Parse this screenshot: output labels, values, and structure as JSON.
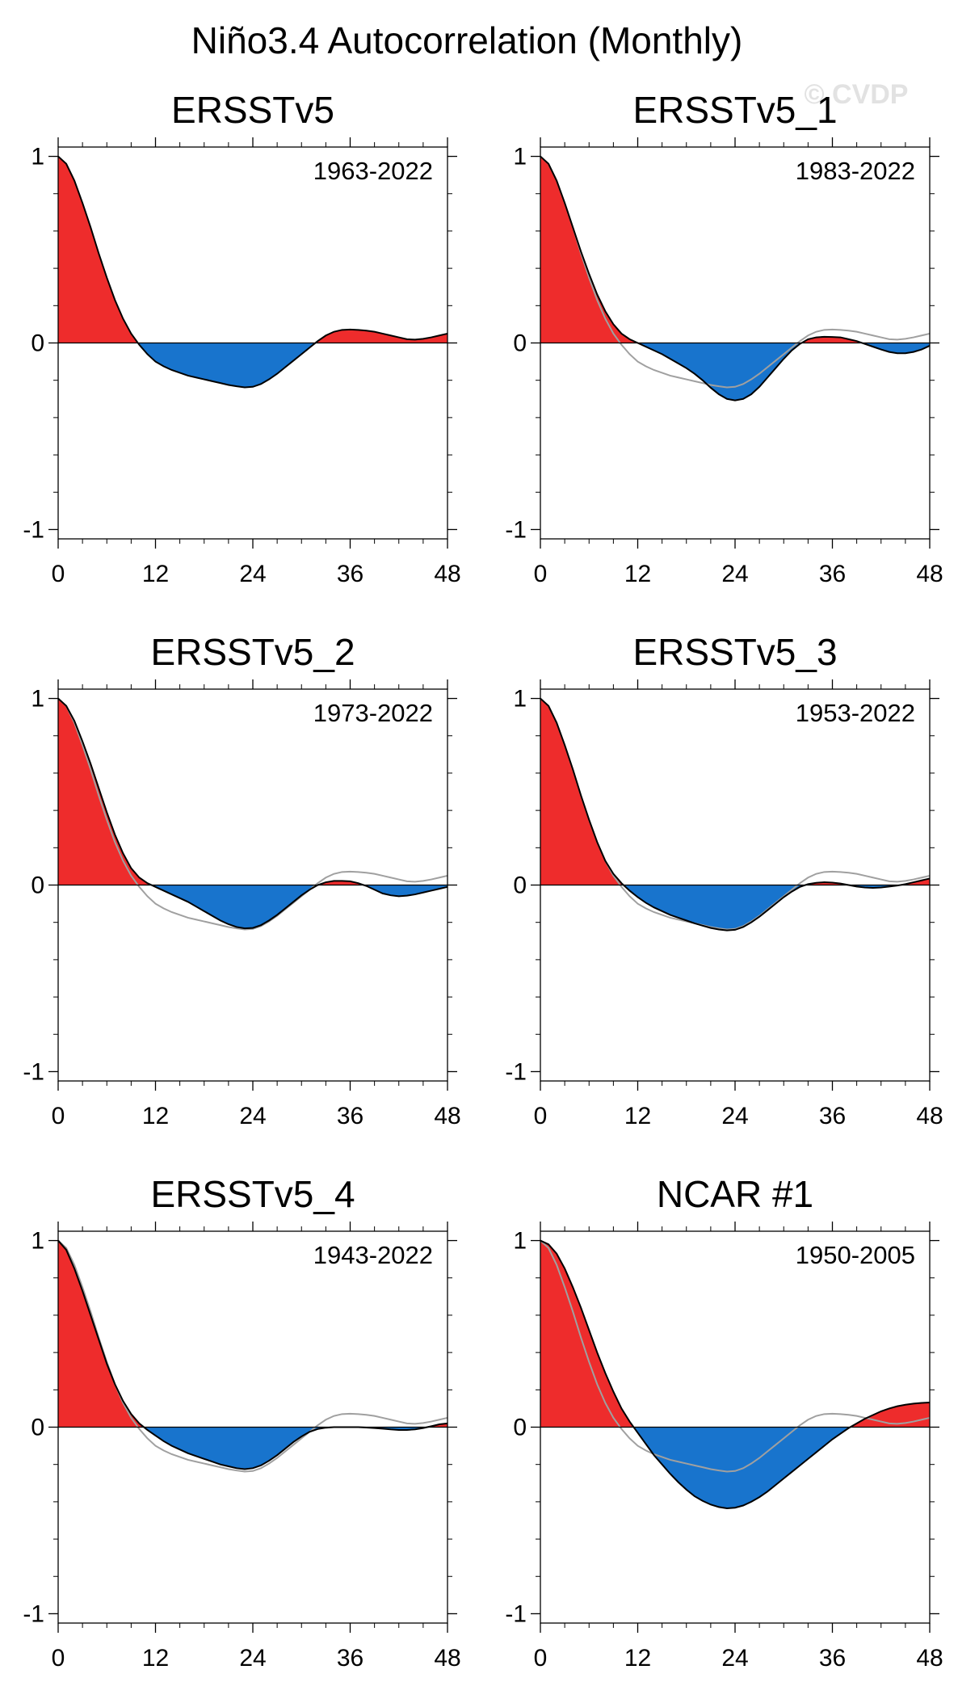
{
  "figure": {
    "title": "Niño3.4 Autocorrelation (Monthly)",
    "watermark": "© CVDP"
  },
  "colors": {
    "positive_fill": "#ee2c2c",
    "negative_fill": "#1874cd",
    "line": "#000000",
    "reference_line": "#a0a0a0",
    "axis": "#000000"
  },
  "chart_data": [
    {
      "type": "area",
      "title": "ERSSTv5",
      "period": "1963-2022",
      "xlabel": "",
      "ylabel": "",
      "xlim": [
        0,
        48
      ],
      "ylim": [
        -1.05,
        1.05
      ],
      "xticks": [
        0,
        12,
        24,
        36,
        48
      ],
      "xtick_labels": [
        "0",
        "12",
        "24",
        "36",
        "48"
      ],
      "yticks": [
        -1,
        0,
        1
      ],
      "ytick_labels": [
        "-1",
        "0",
        "1"
      ],
      "x": [
        0,
        1,
        2,
        3,
        4,
        5,
        6,
        7,
        8,
        9,
        10,
        11,
        12,
        13,
        14,
        15,
        16,
        17,
        18,
        19,
        20,
        21,
        22,
        23,
        24,
        25,
        26,
        27,
        28,
        29,
        30,
        31,
        32,
        33,
        34,
        35,
        36,
        37,
        38,
        39,
        40,
        41,
        42,
        43,
        44,
        45,
        46,
        47,
        48
      ],
      "series": [
        {
          "name": "ERSSTv5",
          "values": [
            1.0,
            0.96,
            0.87,
            0.75,
            0.62,
            0.48,
            0.35,
            0.23,
            0.13,
            0.05,
            -0.01,
            -0.06,
            -0.1,
            -0.125,
            -0.145,
            -0.16,
            -0.175,
            -0.185,
            -0.195,
            -0.205,
            -0.215,
            -0.225,
            -0.232,
            -0.238,
            -0.235,
            -0.22,
            -0.195,
            -0.165,
            -0.13,
            -0.095,
            -0.06,
            -0.025,
            0.01,
            0.04,
            0.06,
            0.07,
            0.072,
            0.07,
            0.066,
            0.06,
            0.05,
            0.04,
            0.03,
            0.02,
            0.018,
            0.022,
            0.03,
            0.04,
            0.05
          ]
        }
      ]
    },
    {
      "type": "area",
      "title": "ERSSTv5_1",
      "period": "1983-2022",
      "xlabel": "",
      "ylabel": "",
      "xlim": [
        0,
        48
      ],
      "ylim": [
        -1.05,
        1.05
      ],
      "xticks": [
        0,
        12,
        24,
        36,
        48
      ],
      "xtick_labels": [
        "0",
        "12",
        "24",
        "36",
        "48"
      ],
      "yticks": [
        -1,
        0,
        1
      ],
      "ytick_labels": [
        "-1",
        "0",
        "1"
      ],
      "x": [
        0,
        1,
        2,
        3,
        4,
        5,
        6,
        7,
        8,
        9,
        10,
        11,
        12,
        13,
        14,
        15,
        16,
        17,
        18,
        19,
        20,
        21,
        22,
        23,
        24,
        25,
        26,
        27,
        28,
        29,
        30,
        31,
        32,
        33,
        34,
        35,
        36,
        37,
        38,
        39,
        40,
        41,
        42,
        43,
        44,
        45,
        46,
        47,
        48
      ],
      "series": [
        {
          "name": "ERSSTv5_1",
          "values": [
            1.0,
            0.96,
            0.87,
            0.75,
            0.62,
            0.49,
            0.37,
            0.26,
            0.17,
            0.1,
            0.05,
            0.02,
            0.0,
            -0.02,
            -0.04,
            -0.06,
            -0.085,
            -0.11,
            -0.135,
            -0.165,
            -0.2,
            -0.24,
            -0.275,
            -0.3,
            -0.308,
            -0.3,
            -0.275,
            -0.235,
            -0.185,
            -0.135,
            -0.085,
            -0.04,
            -0.005,
            0.02,
            0.03,
            0.033,
            0.032,
            0.03,
            0.02,
            0.01,
            -0.005,
            -0.02,
            -0.035,
            -0.048,
            -0.055,
            -0.055,
            -0.048,
            -0.035,
            -0.015
          ]
        },
        {
          "name": "ERSSTv5 (reference)",
          "role": "reference",
          "values": [
            1.0,
            0.96,
            0.87,
            0.75,
            0.62,
            0.48,
            0.35,
            0.23,
            0.13,
            0.05,
            -0.01,
            -0.06,
            -0.1,
            -0.125,
            -0.145,
            -0.16,
            -0.175,
            -0.185,
            -0.195,
            -0.205,
            -0.215,
            -0.225,
            -0.232,
            -0.238,
            -0.235,
            -0.22,
            -0.195,
            -0.165,
            -0.13,
            -0.095,
            -0.06,
            -0.025,
            0.01,
            0.04,
            0.06,
            0.07,
            0.072,
            0.07,
            0.066,
            0.06,
            0.05,
            0.04,
            0.03,
            0.02,
            0.018,
            0.022,
            0.03,
            0.04,
            0.05
          ]
        }
      ]
    },
    {
      "type": "area",
      "title": "ERSSTv5_2",
      "period": "1973-2022",
      "xlabel": "",
      "ylabel": "",
      "xlim": [
        0,
        48
      ],
      "ylim": [
        -1.05,
        1.05
      ],
      "xticks": [
        0,
        12,
        24,
        36,
        48
      ],
      "xtick_labels": [
        "0",
        "12",
        "24",
        "36",
        "48"
      ],
      "yticks": [
        -1,
        0,
        1
      ],
      "ytick_labels": [
        "-1",
        "0",
        "1"
      ],
      "x": [
        0,
        1,
        2,
        3,
        4,
        5,
        6,
        7,
        8,
        9,
        10,
        11,
        12,
        13,
        14,
        15,
        16,
        17,
        18,
        19,
        20,
        21,
        22,
        23,
        24,
        25,
        26,
        27,
        28,
        29,
        30,
        31,
        32,
        33,
        34,
        35,
        36,
        37,
        38,
        39,
        40,
        41,
        42,
        43,
        44,
        45,
        46,
        47,
        48
      ],
      "series": [
        {
          "name": "ERSSTv5_2",
          "values": [
            1.0,
            0.96,
            0.88,
            0.77,
            0.65,
            0.52,
            0.39,
            0.27,
            0.17,
            0.09,
            0.04,
            0.01,
            -0.01,
            -0.03,
            -0.05,
            -0.07,
            -0.09,
            -0.115,
            -0.14,
            -0.165,
            -0.19,
            -0.21,
            -0.225,
            -0.232,
            -0.23,
            -0.215,
            -0.19,
            -0.16,
            -0.125,
            -0.09,
            -0.055,
            -0.025,
            0.0,
            0.015,
            0.022,
            0.022,
            0.02,
            0.01,
            -0.005,
            -0.025,
            -0.045,
            -0.055,
            -0.06,
            -0.057,
            -0.05,
            -0.04,
            -0.03,
            -0.02,
            -0.01
          ]
        },
        {
          "name": "ERSSTv5 (reference)",
          "role": "reference",
          "values": [
            1.0,
            0.96,
            0.87,
            0.75,
            0.62,
            0.48,
            0.35,
            0.23,
            0.13,
            0.05,
            -0.01,
            -0.06,
            -0.1,
            -0.125,
            -0.145,
            -0.16,
            -0.175,
            -0.185,
            -0.195,
            -0.205,
            -0.215,
            -0.225,
            -0.232,
            -0.238,
            -0.235,
            -0.22,
            -0.195,
            -0.165,
            -0.13,
            -0.095,
            -0.06,
            -0.025,
            0.01,
            0.04,
            0.06,
            0.07,
            0.072,
            0.07,
            0.066,
            0.06,
            0.05,
            0.04,
            0.03,
            0.02,
            0.018,
            0.022,
            0.03,
            0.04,
            0.05
          ]
        }
      ]
    },
    {
      "type": "area",
      "title": "ERSSTv5_3",
      "period": "1953-2022",
      "xlabel": "",
      "ylabel": "",
      "xlim": [
        0,
        48
      ],
      "ylim": [
        -1.05,
        1.05
      ],
      "xticks": [
        0,
        12,
        24,
        36,
        48
      ],
      "xtick_labels": [
        "0",
        "12",
        "24",
        "36",
        "48"
      ],
      "yticks": [
        -1,
        0,
        1
      ],
      "ytick_labels": [
        "-1",
        "0",
        "1"
      ],
      "x": [
        0,
        1,
        2,
        3,
        4,
        5,
        6,
        7,
        8,
        9,
        10,
        11,
        12,
        13,
        14,
        15,
        16,
        17,
        18,
        19,
        20,
        21,
        22,
        23,
        24,
        25,
        26,
        27,
        28,
        29,
        30,
        31,
        32,
        33,
        34,
        35,
        36,
        37,
        38,
        39,
        40,
        41,
        42,
        43,
        44,
        45,
        46,
        47,
        48
      ],
      "series": [
        {
          "name": "ERSSTv5_3",
          "values": [
            1.0,
            0.96,
            0.87,
            0.75,
            0.62,
            0.48,
            0.35,
            0.23,
            0.13,
            0.06,
            0.01,
            -0.03,
            -0.065,
            -0.095,
            -0.12,
            -0.14,
            -0.16,
            -0.175,
            -0.19,
            -0.205,
            -0.218,
            -0.23,
            -0.238,
            -0.243,
            -0.24,
            -0.225,
            -0.2,
            -0.17,
            -0.135,
            -0.1,
            -0.065,
            -0.035,
            -0.01,
            0.005,
            0.012,
            0.015,
            0.013,
            0.008,
            0.0,
            -0.008,
            -0.013,
            -0.015,
            -0.013,
            -0.008,
            -0.003,
            0.005,
            0.015,
            0.025,
            0.035
          ]
        },
        {
          "name": "ERSSTv5 (reference)",
          "role": "reference",
          "values": [
            1.0,
            0.96,
            0.87,
            0.75,
            0.62,
            0.48,
            0.35,
            0.23,
            0.13,
            0.05,
            -0.01,
            -0.06,
            -0.1,
            -0.125,
            -0.145,
            -0.16,
            -0.175,
            -0.185,
            -0.195,
            -0.205,
            -0.215,
            -0.225,
            -0.232,
            -0.238,
            -0.235,
            -0.22,
            -0.195,
            -0.165,
            -0.13,
            -0.095,
            -0.06,
            -0.025,
            0.01,
            0.04,
            0.06,
            0.07,
            0.072,
            0.07,
            0.066,
            0.06,
            0.05,
            0.04,
            0.03,
            0.02,
            0.018,
            0.022,
            0.03,
            0.04,
            0.05
          ]
        }
      ]
    },
    {
      "type": "area",
      "title": "ERSSTv5_4",
      "period": "1943-2022",
      "xlabel": "",
      "ylabel": "",
      "xlim": [
        0,
        48
      ],
      "ylim": [
        -1.05,
        1.05
      ],
      "xticks": [
        0,
        12,
        24,
        36,
        48
      ],
      "xtick_labels": [
        "0",
        "12",
        "24",
        "36",
        "48"
      ],
      "yticks": [
        -1,
        0,
        1
      ],
      "ytick_labels": [
        "-1",
        "0",
        "1"
      ],
      "x": [
        0,
        1,
        2,
        3,
        4,
        5,
        6,
        7,
        8,
        9,
        10,
        11,
        12,
        13,
        14,
        15,
        16,
        17,
        18,
        19,
        20,
        21,
        22,
        23,
        24,
        25,
        26,
        27,
        28,
        29,
        30,
        31,
        32,
        33,
        34,
        35,
        36,
        37,
        38,
        39,
        40,
        41,
        42,
        43,
        44,
        45,
        46,
        47,
        48
      ],
      "series": [
        {
          "name": "ERSSTv5_4",
          "values": [
            1.0,
            0.95,
            0.85,
            0.73,
            0.6,
            0.47,
            0.34,
            0.23,
            0.14,
            0.07,
            0.02,
            -0.015,
            -0.045,
            -0.075,
            -0.1,
            -0.12,
            -0.14,
            -0.155,
            -0.17,
            -0.185,
            -0.2,
            -0.21,
            -0.22,
            -0.225,
            -0.22,
            -0.205,
            -0.18,
            -0.15,
            -0.115,
            -0.08,
            -0.05,
            -0.025,
            -0.01,
            -0.003,
            0.0,
            0.0,
            0.0,
            0.0,
            -0.002,
            -0.005,
            -0.008,
            -0.012,
            -0.015,
            -0.015,
            -0.012,
            -0.005,
            0.005,
            0.015,
            0.02
          ]
        },
        {
          "name": "ERSSTv5 (reference)",
          "role": "reference",
          "values": [
            1.0,
            0.96,
            0.87,
            0.75,
            0.62,
            0.48,
            0.35,
            0.23,
            0.13,
            0.05,
            -0.01,
            -0.06,
            -0.1,
            -0.125,
            -0.145,
            -0.16,
            -0.175,
            -0.185,
            -0.195,
            -0.205,
            -0.215,
            -0.225,
            -0.232,
            -0.238,
            -0.235,
            -0.22,
            -0.195,
            -0.165,
            -0.13,
            -0.095,
            -0.06,
            -0.025,
            0.01,
            0.04,
            0.06,
            0.07,
            0.072,
            0.07,
            0.066,
            0.06,
            0.05,
            0.04,
            0.03,
            0.02,
            0.018,
            0.022,
            0.03,
            0.04,
            0.05
          ]
        }
      ]
    },
    {
      "type": "area",
      "title": "NCAR #1",
      "period": "1950-2005",
      "xlabel": "",
      "ylabel": "",
      "xlim": [
        0,
        48
      ],
      "ylim": [
        -1.05,
        1.05
      ],
      "xticks": [
        0,
        12,
        24,
        36,
        48
      ],
      "xtick_labels": [
        "0",
        "12",
        "24",
        "36",
        "48"
      ],
      "yticks": [
        -1,
        0,
        1
      ],
      "ytick_labels": [
        "-1",
        "0",
        "1"
      ],
      "x": [
        0,
        1,
        2,
        3,
        4,
        5,
        6,
        7,
        8,
        9,
        10,
        11,
        12,
        13,
        14,
        15,
        16,
        17,
        18,
        19,
        20,
        21,
        22,
        23,
        24,
        25,
        26,
        27,
        28,
        29,
        30,
        31,
        32,
        33,
        34,
        35,
        36,
        37,
        38,
        39,
        40,
        41,
        42,
        43,
        44,
        45,
        46,
        47,
        48
      ],
      "series": [
        {
          "name": "NCAR #1",
          "values": [
            1.0,
            0.98,
            0.93,
            0.85,
            0.75,
            0.64,
            0.52,
            0.4,
            0.29,
            0.19,
            0.1,
            0.03,
            -0.03,
            -0.09,
            -0.15,
            -0.2,
            -0.25,
            -0.295,
            -0.335,
            -0.37,
            -0.395,
            -0.415,
            -0.428,
            -0.435,
            -0.432,
            -0.42,
            -0.4,
            -0.375,
            -0.345,
            -0.31,
            -0.275,
            -0.24,
            -0.205,
            -0.17,
            -0.135,
            -0.1,
            -0.065,
            -0.035,
            -0.005,
            0.02,
            0.045,
            0.065,
            0.085,
            0.1,
            0.112,
            0.12,
            0.126,
            0.13,
            0.132
          ]
        },
        {
          "name": "ERSSTv5 (reference)",
          "role": "reference",
          "values": [
            1.0,
            0.96,
            0.87,
            0.75,
            0.62,
            0.48,
            0.35,
            0.23,
            0.13,
            0.05,
            -0.01,
            -0.06,
            -0.1,
            -0.125,
            -0.145,
            -0.16,
            -0.175,
            -0.185,
            -0.195,
            -0.205,
            -0.215,
            -0.225,
            -0.232,
            -0.238,
            -0.235,
            -0.22,
            -0.195,
            -0.165,
            -0.13,
            -0.095,
            -0.06,
            -0.025,
            0.01,
            0.04,
            0.06,
            0.07,
            0.072,
            0.07,
            0.066,
            0.06,
            0.05,
            0.04,
            0.03,
            0.02,
            0.018,
            0.022,
            0.03,
            0.04,
            0.05
          ]
        }
      ]
    }
  ]
}
